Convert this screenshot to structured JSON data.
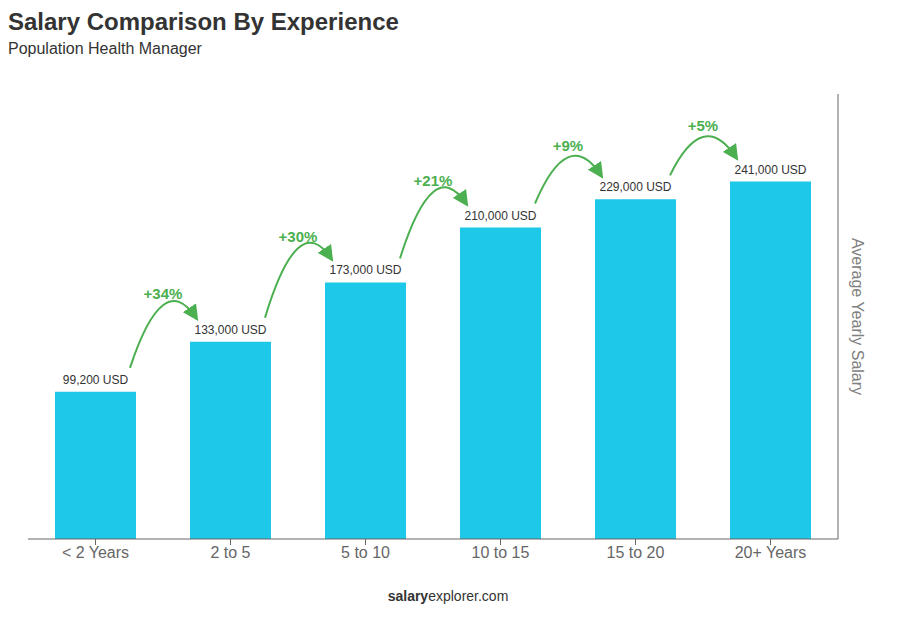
{
  "chart_data": {
    "type": "bar",
    "title": "Salary Comparison By Experience",
    "subtitle": "Population Health Manager",
    "categories": [
      "< 2 Years",
      "2 to 5",
      "5 to 10",
      "10 to 15",
      "15 to 20",
      "20+ Years"
    ],
    "values": [
      99200,
      133000,
      173000,
      210000,
      229000,
      241000
    ],
    "value_labels": [
      "99,200 USD",
      "133,000 USD",
      "173,000 USD",
      "210,000 USD",
      "229,000 USD",
      "241,000 USD"
    ],
    "data_labels": true,
    "color": "#1EC8E8",
    "ylabel": "Average Yearly Salary",
    "ylim": [
      0,
      300000
    ],
    "tick_labels": "x",
    "grid": false,
    "annotations": [
      "+34%",
      "+30%",
      "+21%",
      "+9%",
      "+5%"
    ],
    "watermark": [
      "salary",
      "explorer.com"
    ]
  }
}
